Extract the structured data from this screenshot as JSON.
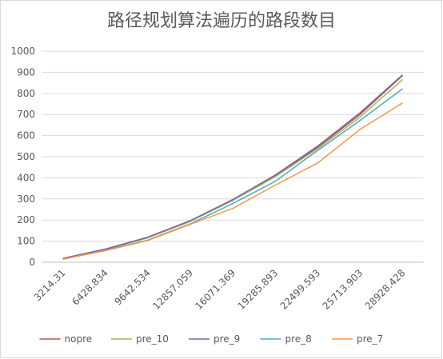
{
  "chart_data": {
    "type": "line",
    "title": "路径规划算法遍历的路段数目",
    "xlabel": "",
    "ylabel": "",
    "ylim": [
      0,
      1000
    ],
    "yticks": [
      "0",
      "100",
      "200",
      "300",
      "400",
      "500",
      "600",
      "700",
      "800",
      "900",
      "1000"
    ],
    "categories": [
      "3214.31",
      "6428.834",
      "9642.534",
      "12857.059",
      "16071.369",
      "19285.893",
      "22499.593",
      "25713.903",
      "28928.428"
    ],
    "grid": true,
    "legend": "bottom",
    "series": [
      {
        "name": "nopre",
        "color": "#c0504d",
        "values": [
          18,
          62,
          118,
          195,
          295,
          410,
          545,
          700,
          885
        ]
      },
      {
        "name": "pre_10",
        "color": "#9bbb59",
        "values": [
          17,
          60,
          115,
          193,
          292,
          405,
          538,
          688,
          865
        ]
      },
      {
        "name": "pre_9",
        "color": "#8064a2",
        "values": [
          18,
          62,
          119,
          197,
          297,
          413,
          550,
          708,
          888
        ]
      },
      {
        "name": "pre_8",
        "color": "#4bacc6",
        "values": [
          14,
          57,
          105,
          182,
          278,
          383,
          530,
          672,
          822
        ]
      },
      {
        "name": "pre_7",
        "color": "#f79646",
        "values": [
          15,
          55,
          103,
          180,
          255,
          365,
          470,
          630,
          755
        ]
      }
    ]
  }
}
